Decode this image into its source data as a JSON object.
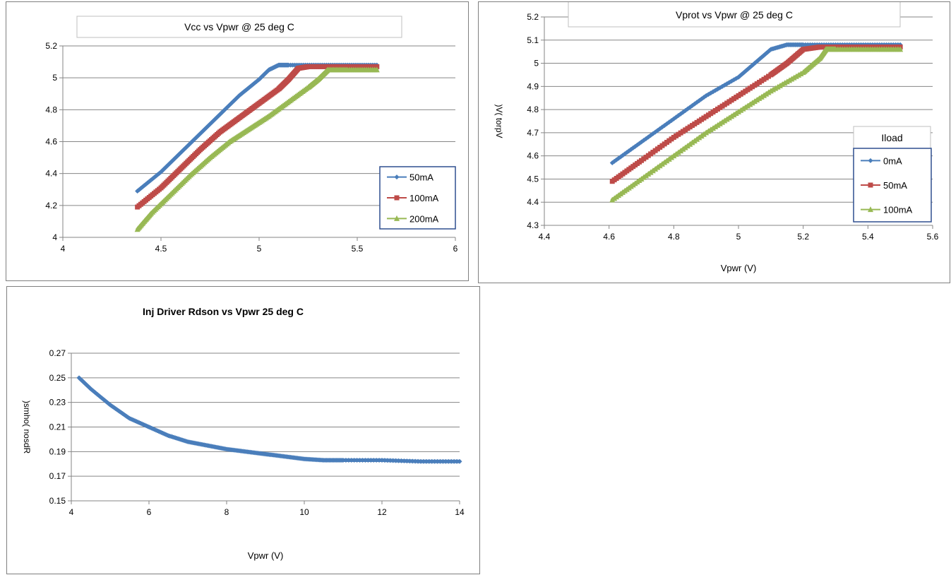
{
  "chart_data": [
    {
      "type": "line",
      "title": "Vcc vs Vpwr  @ 25 deg C",
      "xlabel": "",
      "ylabel": "",
      "xlim": [
        4,
        6
      ],
      "ylim": [
        4,
        5.2
      ],
      "xticks": [
        "4",
        "4.5",
        "5",
        "5.5",
        "6"
      ],
      "yticks": [
        "4",
        "4.2",
        "4.4",
        "4.6",
        "4.8",
        "5",
        "5.2"
      ],
      "grid": true,
      "legend_title": "",
      "legend_position": "right",
      "series": [
        {
          "name": "50mA",
          "color": "#4a7ebb",
          "marker": "diamond",
          "x": [
            4.38,
            4.5,
            4.6,
            4.7,
            4.8,
            4.9,
            5.0,
            5.05,
            5.1,
            5.15,
            5.3,
            5.45,
            5.6
          ],
          "y": [
            4.29,
            4.41,
            4.53,
            4.65,
            4.77,
            4.89,
            4.99,
            5.05,
            5.08,
            5.08,
            5.08,
            5.08,
            5.08
          ]
        },
        {
          "name": "100mA",
          "color": "#be4b48",
          "marker": "square",
          "x": [
            4.38,
            4.5,
            4.6,
            4.7,
            4.8,
            4.9,
            5.0,
            5.1,
            5.15,
            5.2,
            5.25,
            5.4,
            5.6
          ],
          "y": [
            4.19,
            4.31,
            4.43,
            4.55,
            4.66,
            4.75,
            4.84,
            4.93,
            4.99,
            5.06,
            5.07,
            5.07,
            5.07
          ]
        },
        {
          "name": "200mA",
          "color": "#98b954",
          "marker": "triangle",
          "x": [
            4.38,
            4.45,
            4.55,
            4.65,
            4.75,
            4.85,
            4.95,
            5.05,
            5.15,
            5.25,
            5.3,
            5.35,
            5.45,
            5.6
          ],
          "y": [
            4.05,
            4.15,
            4.27,
            4.39,
            4.5,
            4.6,
            4.68,
            4.76,
            4.85,
            4.94,
            4.99,
            5.05,
            5.05,
            5.05
          ]
        }
      ]
    },
    {
      "type": "line",
      "title": "Vprot vs Vpwr  @ 25 deg C",
      "xlabel": "Vpwr  (V)",
      "ylabel": ")V( torpV",
      "xlim": [
        4.4,
        5.6
      ],
      "ylim": [
        4.3,
        5.2
      ],
      "xticks": [
        "4.4",
        "4.6",
        "4.8",
        "5",
        "5.2",
        "5.4",
        "5.6"
      ],
      "yticks": [
        "4.3",
        "4.4",
        "4.5",
        "4.6",
        "4.7",
        "4.8",
        "4.9",
        "5",
        "5.1",
        "5.2"
      ],
      "grid": true,
      "legend_title": "Iload",
      "legend_position": "right",
      "series": [
        {
          "name": "0mA",
          "color": "#4a7ebb",
          "marker": "diamond",
          "x": [
            4.61,
            4.7,
            4.8,
            4.9,
            5.0,
            5.05,
            5.1,
            5.15,
            5.2,
            5.3,
            5.4,
            5.5
          ],
          "y": [
            4.57,
            4.66,
            4.76,
            4.86,
            4.94,
            5.0,
            5.06,
            5.08,
            5.08,
            5.08,
            5.08,
            5.08
          ]
        },
        {
          "name": "50mA",
          "color": "#be4b48",
          "marker": "square",
          "x": [
            4.61,
            4.7,
            4.8,
            4.9,
            5.0,
            5.1,
            5.15,
            5.2,
            5.25,
            5.3,
            5.4,
            5.5
          ],
          "y": [
            4.49,
            4.58,
            4.68,
            4.77,
            4.86,
            4.95,
            5.0,
            5.06,
            5.07,
            5.07,
            5.07,
            5.07
          ]
        },
        {
          "name": "100mA",
          "color": "#98b954",
          "marker": "triangle",
          "x": [
            4.61,
            4.7,
            4.8,
            4.9,
            5.0,
            5.1,
            5.2,
            5.25,
            5.27,
            5.3,
            5.4,
            5.5
          ],
          "y": [
            4.41,
            4.5,
            4.6,
            4.7,
            4.79,
            4.88,
            4.96,
            5.02,
            5.06,
            5.06,
            5.06,
            5.06
          ]
        }
      ]
    },
    {
      "type": "line",
      "title": "Inj Driver Rdson vs Vpwr  25 deg C",
      "xlabel": "Vpwr  (V)",
      "ylabel": ")smho( nosdR",
      "xlim": [
        4,
        14
      ],
      "ylim": [
        0.15,
        0.27
      ],
      "xticks": [
        "4",
        "6",
        "8",
        "10",
        "12",
        "14"
      ],
      "yticks": [
        "0.15",
        "0.17",
        "0.19",
        "0.21",
        "0.23",
        "0.25",
        "0.27"
      ],
      "grid": true,
      "legend_title": "",
      "legend_position": "none",
      "series": [
        {
          "color": "#4a7ebb",
          "marker": "diamond",
          "x": [
            4.2,
            4.5,
            5.0,
            5.5,
            6.0,
            6.5,
            7.0,
            7.5,
            8.0,
            8.5,
            9.0,
            9.5,
            10.0,
            10.5,
            11.0,
            12.0,
            13.0,
            14.0
          ],
          "y": [
            0.25,
            0.241,
            0.228,
            0.217,
            0.21,
            0.203,
            0.198,
            0.195,
            0.192,
            0.19,
            0.188,
            0.186,
            0.184,
            0.183,
            0.183,
            0.183,
            0.182,
            0.182
          ]
        }
      ]
    }
  ]
}
